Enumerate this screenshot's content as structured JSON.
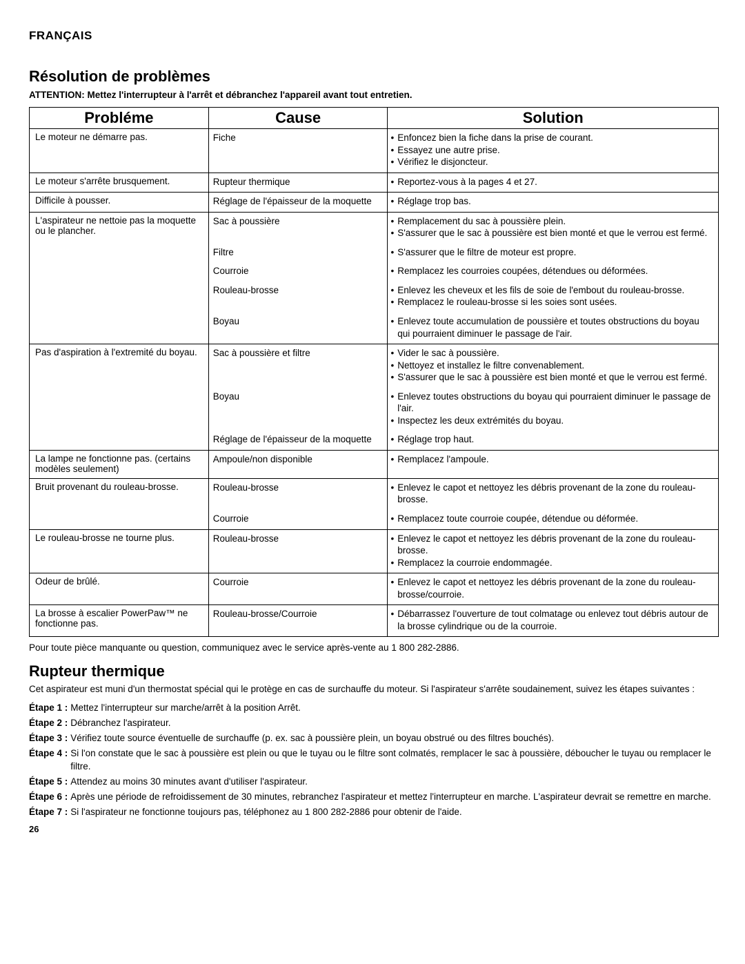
{
  "language_label": "FRANÇAIS",
  "heading": "Résolution de problèmes",
  "attention": "ATTENTION: Mettez l'interrupteur à l'arrêt et débranchez l'appareil avant tout entretien.",
  "columns": {
    "problem": "Probléme",
    "cause": "Cause",
    "solution": "Solution"
  },
  "rows": [
    {
      "section": true,
      "problem": "Le moteur ne démarre pas.",
      "cause": "Fiche",
      "solutions": [
        "Enfoncez bien la fiche dans la prise de courant.",
        "Essayez une autre prise.",
        "Vérifiez le disjoncteur."
      ]
    },
    {
      "section": true,
      "problem": "Le moteur s'arrête brusquement.",
      "cause": "Rupteur thermique",
      "solutions": [
        "Reportez-vous à la pages 4 et 27."
      ]
    },
    {
      "section": true,
      "problem": "Difficile à pousser.",
      "cause": "Réglage de l'épaisseur de la moquette",
      "solutions": [
        "Réglage trop bas."
      ]
    },
    {
      "section": true,
      "problem": "L'aspirateur ne nettoie pas la moquette ou le plancher.",
      "cause": "Sac à poussière",
      "solutions": [
        "Remplacement du sac à poussière plein.",
        "S'assurer que le sac à poussière est bien monté et que le verrou est fermé."
      ]
    },
    {
      "section": false,
      "problem": "",
      "cause": "Filtre",
      "solutions": [
        "S'assurer que le filtre de moteur est propre."
      ]
    },
    {
      "section": false,
      "problem": "",
      "cause": "Courroie",
      "solutions": [
        "Remplacez les courroies coupées, détendues ou déformées."
      ]
    },
    {
      "section": false,
      "problem": "",
      "cause": "Rouleau-brosse",
      "solutions": [
        "Enlevez les cheveux et les fils de soie de l'embout du rouleau-brosse.",
        "Remplacez le rouleau-brosse si les soies sont usées."
      ]
    },
    {
      "section": false,
      "problem": "",
      "cause": "Boyau",
      "solutions": [
        "Enlevez toute accumulation de poussière et toutes obstructions du boyau qui pourraient diminuer le passage de l'air."
      ]
    },
    {
      "section": true,
      "problem": "Pas d'aspiration à l'extremité du boyau.",
      "cause": "Sac à poussière et filtre",
      "solutions": [
        "Vider le sac à poussière.",
        "Nettoyez et installez le filtre convenablement.",
        "S'assurer que le sac à poussière est bien monté et que le verrou est fermé."
      ]
    },
    {
      "section": false,
      "problem": "",
      "cause": "Boyau",
      "solutions": [
        "Enlevez toutes obstructions du boyau qui pourraient diminuer le passage de l'air.",
        "Inspectez les deux extrémités du boyau."
      ]
    },
    {
      "section": false,
      "problem": "",
      "cause": "Réglage de l'épaisseur de la moquette",
      "solutions": [
        "Réglage trop haut."
      ]
    },
    {
      "section": true,
      "problem": "La lampe ne fonctionne pas. (certains modèles seulement)",
      "cause": "Ampoule/non disponible",
      "solutions": [
        "Remplacez l'ampoule."
      ]
    },
    {
      "section": true,
      "problem": "Bruit provenant du rouleau-brosse.",
      "cause": "Rouleau-brosse",
      "solutions": [
        "Enlevez le capot et nettoyez les débris provenant de la zone du rouleau-brosse."
      ]
    },
    {
      "section": false,
      "problem": "",
      "cause": "Courroie",
      "solutions": [
        "Remplacez toute courroie coupée, détendue ou déformée."
      ]
    },
    {
      "section": true,
      "problem": "Le rouleau-brosse ne tourne plus.",
      "cause": "Rouleau-brosse",
      "solutions": [
        "Enlevez le capot et nettoyez les débris provenant de la zone du rouleau-brosse.",
        "Remplacez la courroie endommagée."
      ]
    },
    {
      "section": true,
      "problem": "Odeur de brûlé.",
      "cause": "Courroie",
      "solutions": [
        "Enlevez le capot et nettoyez les débris provenant de la zone du rouleau-brosse/courroie."
      ]
    },
    {
      "section": true,
      "problem": "La brosse à escalier PowerPaw™ ne fonctionne pas.",
      "cause": "Rouleau-brosse/Courroie",
      "solutions": [
        "Débarrassez l'ouverture de tout colmatage ou enlevez tout débris autour de la brosse cylindrique ou de la courroie."
      ]
    }
  ],
  "footer_note": "Pour toute pièce manquante ou question, communiquez avec le service après-vente au 1 800 282-2886.",
  "second_heading": "Rupteur thermique",
  "intro_text": "Cet aspirateur est muni d'un thermostat spécial qui le protège en cas de surchauffe du moteur. Si l'aspirateur s'arrête soudainement, suivez les étapes suivantes :",
  "steps": [
    {
      "label": "Étape 1 :",
      "text": "Mettez l'interrupteur sur marche/arrêt à la position Arrêt."
    },
    {
      "label": "Étape 2 :",
      "text": "Débranchez l'aspirateur."
    },
    {
      "label": "Étape 3 :",
      "text": "Vérifiez toute source éventuelle de surchauffe (p. ex. sac à poussière plein, un boyau obstrué ou des filtres bouchés)."
    },
    {
      "label": "Étape 4 :",
      "text": "Si l'on constate que le sac à poussière est plein ou que le tuyau ou le filtre sont colmatés, remplacer le sac à poussière, déboucher le tuyau ou remplacer le filtre."
    },
    {
      "label": "Étape 5 :",
      "text": "Attendez au moins 30 minutes avant d'utiliser l'aspirateur."
    },
    {
      "label": "Étape 6 :",
      "text": "Après une période de refroidissement de 30 minutes, rebranchez l'aspirateur et mettez l'interrupteur en marche. L'aspirateur devrait se remettre en marche."
    },
    {
      "label": "Étape 7 :",
      "text": "Si l'aspirateur ne fonctionne toujours pas, téléphonez au 1 800 282-2886 pour obtenir de l'aide."
    }
  ],
  "page_number": "26"
}
